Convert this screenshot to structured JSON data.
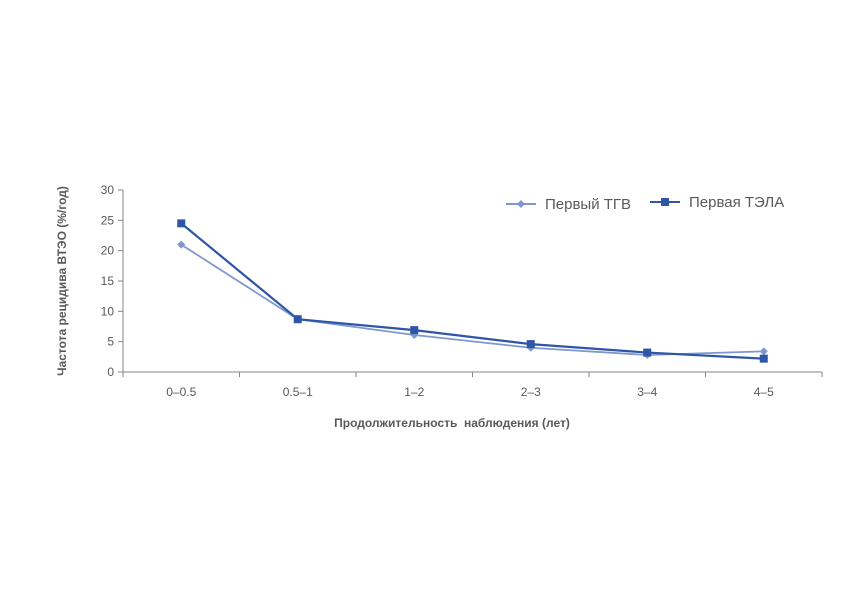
{
  "chart_data": {
    "type": "line",
    "title": "",
    "xlabel": "Продолжительность  наблюдения (лет)",
    "ylabel": "Частота рецидива ВТЭО (%/год)",
    "categories": [
      "0–0.5",
      "0.5–1",
      "1–2",
      "2–3",
      "3–4",
      "4–5"
    ],
    "ylim": [
      0,
      30
    ],
    "yticks": [
      "0",
      "5",
      "10",
      "15",
      "20",
      "25",
      "30"
    ],
    "grid": false,
    "legend_position": "top-right",
    "series": [
      {
        "name": "Первый ТГВ",
        "marker": "diamond",
        "color": "#7F97CF",
        "values": [
          21.0,
          8.7,
          6.1,
          4.0,
          2.8,
          3.4
        ]
      },
      {
        "name": "Первая ТЭЛА",
        "marker": "square",
        "color": "#2E55A6",
        "values": [
          24.5,
          8.7,
          6.9,
          4.6,
          3.2,
          2.2
        ]
      }
    ]
  }
}
